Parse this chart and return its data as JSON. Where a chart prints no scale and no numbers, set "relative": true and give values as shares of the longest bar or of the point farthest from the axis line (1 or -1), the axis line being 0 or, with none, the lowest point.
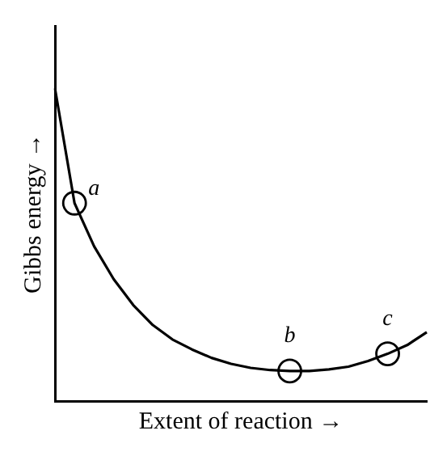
{
  "chart_data": {
    "type": "line",
    "relative": true,
    "xlabel": "Extent of reaction →",
    "ylabel": "Gibbs energy →",
    "categories": [
      null,
      null,
      null,
      null,
      null,
      null,
      null,
      null,
      null,
      null,
      null,
      null,
      null,
      null,
      null,
      null,
      null,
      null,
      null,
      null
    ],
    "series": [
      {
        "color": "#000000",
        "values": [
          1,
          0.633,
          0.495,
          0.39,
          0.307,
          0.243,
          0.197,
          0.165,
          0.138,
          0.119,
          0.106,
          0.099,
          0.096,
          0.096,
          0.101,
          0.11,
          0.128,
          0.151,
          0.179,
          0.22
        ]
      }
    ],
    "annotations": [
      {
        "text": "a",
        "y": 0.633
      },
      {
        "text": "b",
        "y": 0.096
      },
      {
        "text": "c",
        "y": 0.151
      }
    ],
    "grid": false,
    "legend": false
  }
}
